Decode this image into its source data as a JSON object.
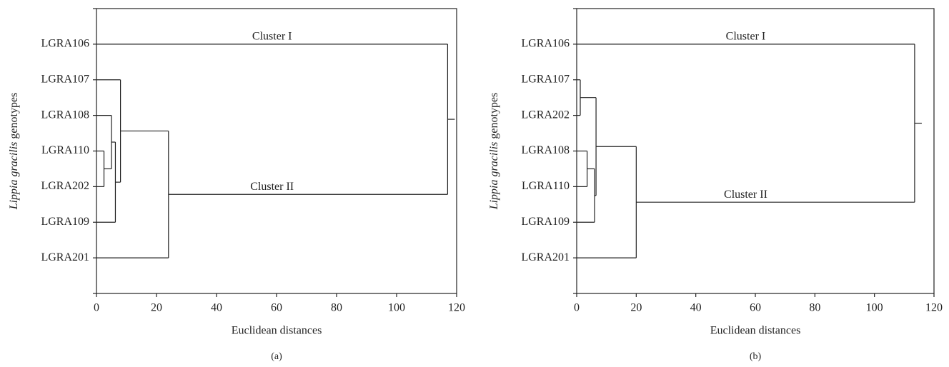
{
  "chart_data": [
    {
      "type": "dendrogram",
      "label": "(a)",
      "xlabel": "Euclidean distances",
      "ylabel_italic": "Lippia gracilis",
      "ylabel": "genotypes",
      "leaves": [
        "LGRA106",
        "LGRA107",
        "LGRA108",
        "LGRA110",
        "LGRA202",
        "LGRA109",
        "LGRA201"
      ],
      "merges": [
        {
          "children": [
            3,
            4
          ],
          "height": 2.5
        },
        {
          "children": [
            2,
            7
          ],
          "height": 5
        },
        {
          "children": [
            8,
            5
          ],
          "height": 6.3
        },
        {
          "children": [
            1,
            9
          ],
          "height": 8
        },
        {
          "children": [
            10,
            6
          ],
          "height": 24
        },
        {
          "children": [
            0,
            11
          ],
          "height": 117
        }
      ],
      "annotations": [
        "Cluster I",
        "Cluster II"
      ],
      "xlim": [
        0,
        120
      ],
      "xticks": [
        0,
        20,
        40,
        60,
        80,
        100,
        120
      ]
    },
    {
      "type": "dendrogram",
      "label": "(b)",
      "xlabel": "Euclidean distances",
      "ylabel_italic": "Lippia gracilis",
      "ylabel": "genotypes",
      "leaves": [
        "LGRA106",
        "LGRA107",
        "LGRA202",
        "LGRA108",
        "LGRA110",
        "LGRA109",
        "LGRA201"
      ],
      "merges": [
        {
          "children": [
            1,
            2
          ],
          "height": 1.2
        },
        {
          "children": [
            3,
            4
          ],
          "height": 3.5
        },
        {
          "children": [
            8,
            5
          ],
          "height": 6
        },
        {
          "children": [
            7,
            9
          ],
          "height": 6.5
        },
        {
          "children": [
            10,
            6
          ],
          "height": 20
        },
        {
          "children": [
            0,
            11
          ],
          "height": 113.5
        }
      ],
      "annotations": [
        "Cluster I",
        "Cluster II"
      ],
      "xlim": [
        0,
        120
      ],
      "xticks": [
        0,
        20,
        40,
        60,
        80,
        100,
        120
      ]
    }
  ]
}
